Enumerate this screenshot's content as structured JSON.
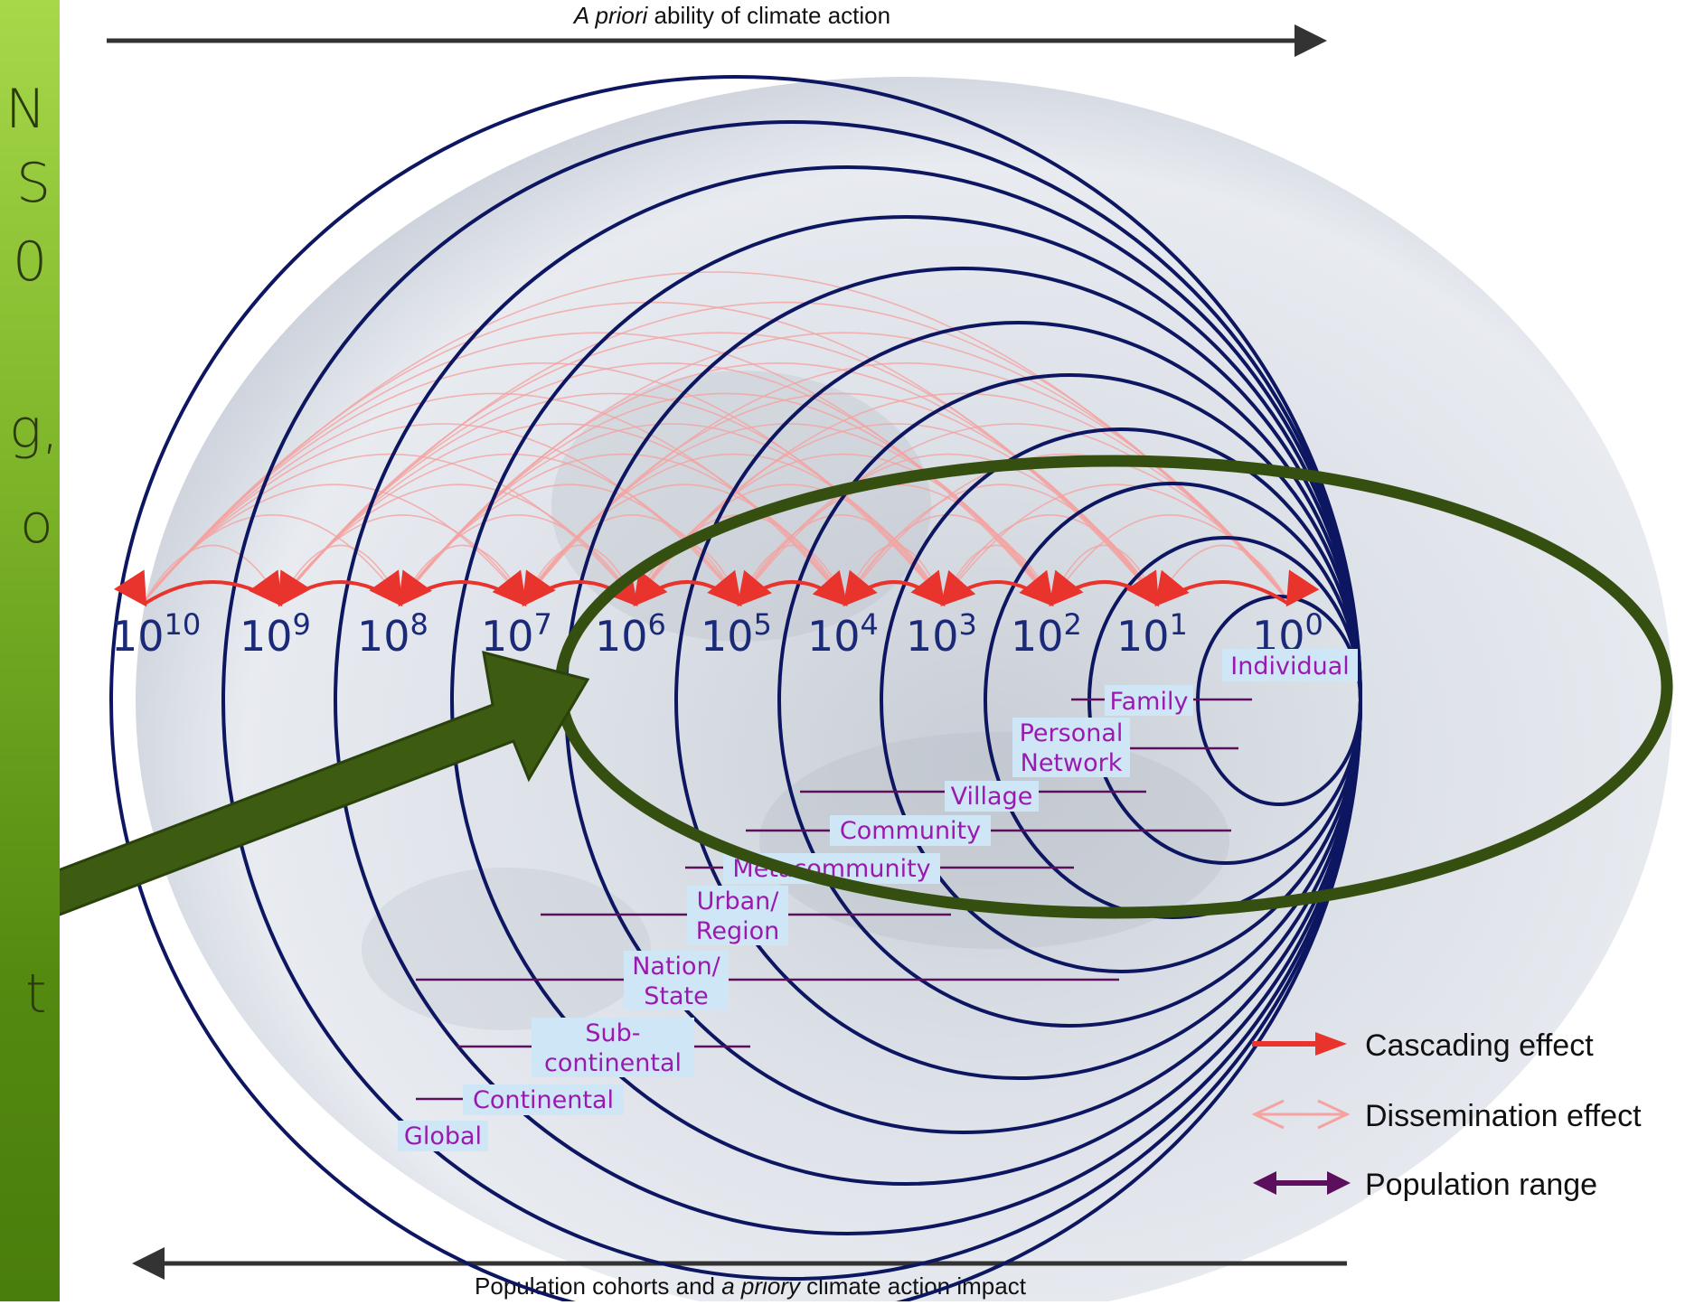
{
  "sidebar": {
    "fragments": [
      "N",
      "S",
      "0",
      "g,",
      "o",
      "t"
    ]
  },
  "figure": {
    "top_axis_label": {
      "emph": "A priori",
      "rest": " ability of climate action"
    },
    "bottom_axis_label": {
      "pre": "Population cohorts and ",
      "emph": "a priory",
      "post": " climate action impact"
    },
    "powers": [
      {
        "base": "10",
        "exp": "10"
      },
      {
        "base": "10",
        "exp": "9"
      },
      {
        "base": "10",
        "exp": "8"
      },
      {
        "base": "10",
        "exp": "7"
      },
      {
        "base": "10",
        "exp": "6"
      },
      {
        "base": "10",
        "exp": "5"
      },
      {
        "base": "10",
        "exp": "4"
      },
      {
        "base": "10",
        "exp": "3"
      },
      {
        "base": "10",
        "exp": "2"
      },
      {
        "base": "10",
        "exp": "1"
      },
      {
        "base": "10",
        "exp": "0"
      }
    ],
    "cohorts": {
      "individual": "Individual",
      "family": "Family",
      "personal_network": [
        "Personal",
        "Network"
      ],
      "village": "Village",
      "community": "Community",
      "metacommunity": "Metacommunity",
      "urban_region": [
        "Urban/",
        "Region"
      ],
      "nation_state": [
        "Nation/",
        "State"
      ],
      "subcontinental": [
        "Sub-",
        "continental"
      ],
      "continental": "Continental",
      "global": "Global"
    },
    "legend": {
      "cascading": "Cascading effect",
      "dissemination": "Dissemination effect",
      "population": "Population range"
    },
    "colors": {
      "ring": "#0d1660",
      "cascade": "#e8342d",
      "dissemination": "#f4a3a0",
      "population": "#5c0f5c",
      "highlight": "#344f10",
      "label_purple": "#9a1ab0"
    }
  }
}
